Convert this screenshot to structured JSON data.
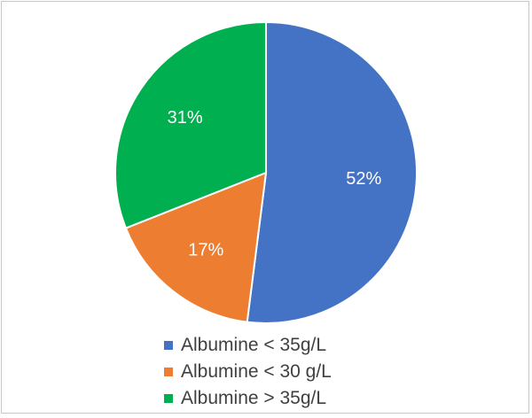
{
  "chart_data": {
    "type": "pie",
    "title": "",
    "categories": [
      "Albumine < 35g/L",
      "Albumine < 30 g/L",
      "Albumine > 35g/L"
    ],
    "values": [
      52,
      17,
      31
    ],
    "value_labels": [
      "52%",
      "17%",
      "31%"
    ],
    "colors": [
      "#4472c4",
      "#ed7d31",
      "#00b050"
    ],
    "start_angle": "12 o'clock",
    "direction": "clockwise",
    "legend": "bottom"
  }
}
